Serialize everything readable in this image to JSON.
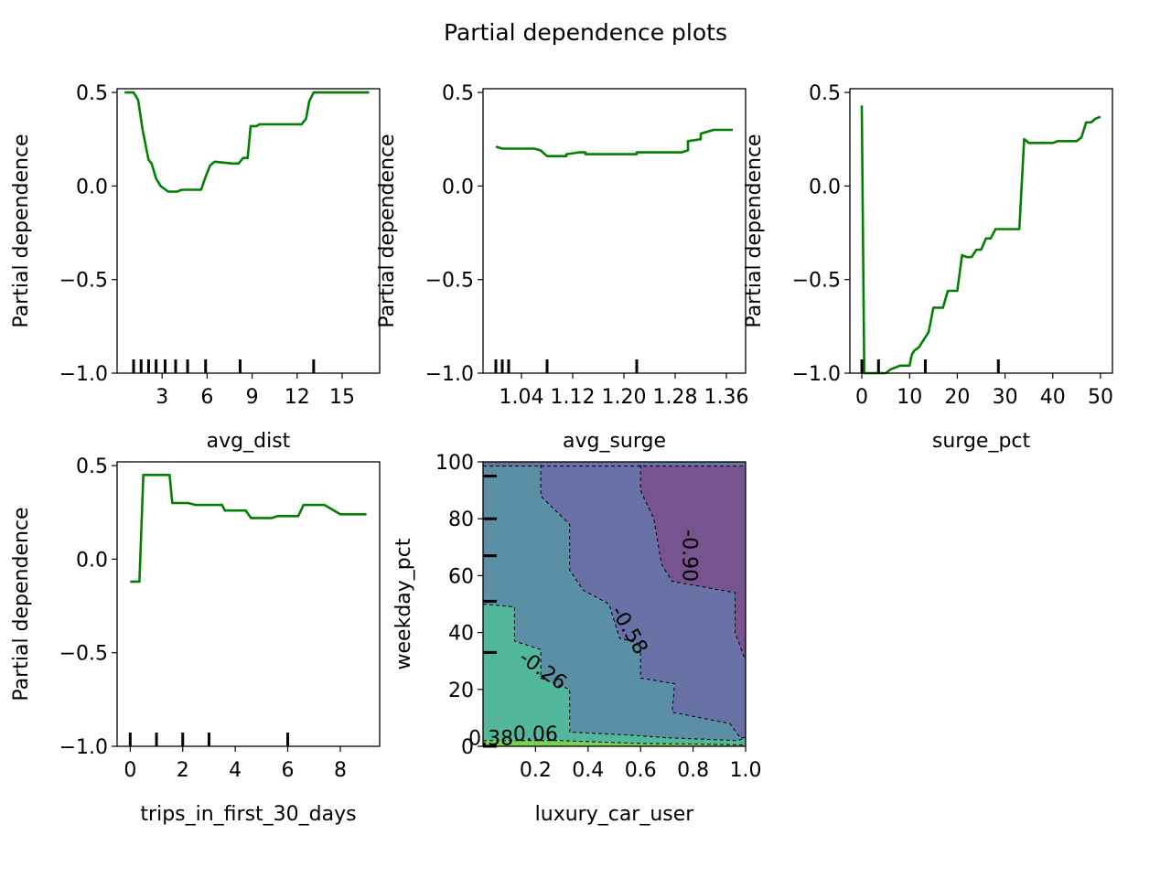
{
  "title": "Partial dependence plots",
  "colors": {
    "line": "#008000",
    "contour_fill": [
      "#78d153",
      "#52b79b",
      "#5b8fa5",
      "#6972a6",
      "#775490"
    ],
    "contour_line": "#000000"
  },
  "chart_data": [
    {
      "id": "avg_dist",
      "type": "line",
      "xlabel": "avg_dist",
      "ylabel": "Partial dependence",
      "xlim": [
        0,
        17.5
      ],
      "ylim": [
        -1.0,
        0.52
      ],
      "xticks": [
        3,
        6,
        9,
        12,
        15
      ],
      "xtick_labels": [
        "3",
        "6",
        "9",
        "12",
        "15"
      ],
      "yticks": [
        0.5,
        0.0,
        -0.5,
        -1.0
      ],
      "ytick_labels": [
        "0.5",
        "0.0",
        "−0.5",
        "−1.0"
      ],
      "deciles": [
        1.1,
        1.6,
        2.1,
        2.6,
        3.2,
        3.9,
        4.7,
        5.9,
        8.2,
        13.1
      ],
      "x": [
        0.5,
        1.1,
        1.4,
        1.7,
        2.1,
        2.3,
        2.6,
        2.9,
        3.4,
        4.0,
        4.3,
        4.6,
        5.6,
        5.9,
        6.2,
        6.5,
        7.7,
        8.1,
        8.4,
        8.7,
        8.9,
        9.3,
        9.5,
        9.8,
        11.8,
        12.0,
        12.3,
        12.6,
        12.8,
        13.1,
        14.2,
        16.8
      ],
      "y": [
        0.5,
        0.5,
        0.46,
        0.3,
        0.14,
        0.12,
        0.04,
        0.0,
        -0.03,
        -0.03,
        -0.02,
        -0.02,
        -0.02,
        0.05,
        0.11,
        0.13,
        0.12,
        0.12,
        0.15,
        0.15,
        0.32,
        0.32,
        0.33,
        0.33,
        0.33,
        0.33,
        0.33,
        0.36,
        0.45,
        0.5,
        0.5,
        0.5
      ]
    },
    {
      "id": "avg_surge",
      "type": "line",
      "xlabel": "avg_surge",
      "ylabel": "Partial dependence",
      "xlim": [
        0.98,
        1.39
      ],
      "ylim": [
        -1.0,
        0.52
      ],
      "xticks": [
        1.04,
        1.12,
        1.2,
        1.28,
        1.36
      ],
      "xtick_labels": [
        "1.04",
        "1.12",
        "1.20",
        "1.28",
        "1.36"
      ],
      "yticks": [
        0.5,
        0.0,
        -0.5,
        -1.0
      ],
      "ytick_labels": [
        "0.5",
        "0.0",
        "−0.5",
        "−1.0"
      ],
      "deciles": [
        1.0,
        1.01,
        1.02,
        1.08,
        1.22
      ],
      "x": [
        1.0,
        1.01,
        1.05,
        1.06,
        1.06,
        1.07,
        1.07,
        1.08,
        1.1,
        1.11,
        1.11,
        1.13,
        1.14,
        1.14,
        1.18,
        1.22,
        1.22,
        1.25,
        1.29,
        1.3,
        1.3,
        1.32,
        1.32,
        1.34,
        1.37
      ],
      "y": [
        0.21,
        0.2,
        0.2,
        0.2,
        0.2,
        0.19,
        0.19,
        0.16,
        0.16,
        0.16,
        0.17,
        0.18,
        0.18,
        0.17,
        0.17,
        0.17,
        0.18,
        0.18,
        0.18,
        0.19,
        0.24,
        0.25,
        0.28,
        0.3,
        0.3
      ]
    },
    {
      "id": "surge_pct",
      "type": "line",
      "xlabel": "surge_pct",
      "ylabel": "Partial dependence",
      "xlim": [
        -2.5,
        52.5
      ],
      "ylim": [
        -1.0,
        0.52
      ],
      "xticks": [
        0,
        10,
        20,
        30,
        40,
        50
      ],
      "xtick_labels": [
        "0",
        "10",
        "20",
        "30",
        "40",
        "50"
      ],
      "yticks": [
        0.5,
        0.0,
        -0.5,
        -1.0
      ],
      "ytick_labels": [
        "0.5",
        "0.0",
        "−0.5",
        "−1.0"
      ],
      "deciles": [
        0,
        3.5,
        13.3,
        28.6
      ],
      "x": [
        0.0,
        0.5,
        1.0,
        2.0,
        3.0,
        4.0,
        5.0,
        6.0,
        7.0,
        8.0,
        9.0,
        10.0,
        10.5,
        11.0,
        12.0,
        13.0,
        14.0,
        15.0,
        16.0,
        17.0,
        18.0,
        19.0,
        20.0,
        21.0,
        22.0,
        23.0,
        24.0,
        25.0,
        26.0,
        27.0,
        28.0,
        29.0,
        30.0,
        31.0,
        32.0,
        33.0,
        34.0,
        35.0,
        36.0,
        37.0,
        40.0,
        41.0,
        45.0,
        46.0,
        47.0,
        48.0,
        49.0,
        50.0
      ],
      "y": [
        0.43,
        -1.0,
        -1.0,
        -1.0,
        -1.0,
        -1.0,
        -1.0,
        -0.98,
        -0.97,
        -0.96,
        -0.96,
        -0.96,
        -0.9,
        -0.88,
        -0.86,
        -0.82,
        -0.78,
        -0.65,
        -0.65,
        -0.65,
        -0.56,
        -0.56,
        -0.56,
        -0.37,
        -0.38,
        -0.38,
        -0.34,
        -0.34,
        -0.28,
        -0.28,
        -0.23,
        -0.23,
        -0.23,
        -0.23,
        -0.23,
        -0.23,
        0.25,
        0.23,
        0.23,
        0.23,
        0.23,
        0.24,
        0.24,
        0.26,
        0.34,
        0.34,
        0.36,
        0.37
      ]
    },
    {
      "id": "trips_in_first_30_days",
      "type": "line",
      "xlabel": "trips_in_first_30_days",
      "ylabel": "Partial dependence",
      "xlim": [
        -0.5,
        9.5
      ],
      "ylim": [
        -1.0,
        0.52
      ],
      "xticks": [
        0,
        2,
        4,
        6,
        8
      ],
      "xtick_labels": [
        "0",
        "2",
        "4",
        "6",
        "8"
      ],
      "yticks": [
        0.5,
        0.0,
        -0.5,
        -1.0
      ],
      "ytick_labels": [
        "0.5",
        "0.0",
        "−0.5",
        "−1.0"
      ],
      "deciles": [
        0,
        1,
        2,
        3,
        6
      ],
      "x": [
        0.0,
        0.35,
        0.5,
        1.0,
        1.5,
        1.6,
        2.0,
        2.2,
        2.5,
        3.0,
        3.5,
        3.6,
        4.0,
        4.4,
        4.6,
        5.0,
        5.4,
        5.6,
        6.0,
        6.4,
        6.6,
        7.0,
        7.4,
        8.0,
        8.6,
        9.0
      ],
      "y": [
        -0.12,
        -0.12,
        0.45,
        0.45,
        0.45,
        0.3,
        0.3,
        0.3,
        0.29,
        0.29,
        0.29,
        0.26,
        0.26,
        0.26,
        0.22,
        0.22,
        0.22,
        0.23,
        0.23,
        0.23,
        0.29,
        0.29,
        0.29,
        0.24,
        0.24,
        0.24
      ]
    },
    {
      "id": "luxury_car_user_weekday_pct",
      "type": "contour",
      "xlabel": "luxury_car_user",
      "ylabel": "weekday_pct",
      "xlim": [
        0.0,
        1.0
      ],
      "ylim": [
        0,
        100
      ],
      "xticks": [
        0.2,
        0.4,
        0.6,
        0.8,
        1.0
      ],
      "xtick_labels": [
        "0.2",
        "0.4",
        "0.6",
        "0.8",
        "1.0"
      ],
      "yticks": [
        0,
        20,
        40,
        60,
        80,
        100
      ],
      "ytick_labels": [
        "0",
        "20",
        "40",
        "60",
        "80",
        "100"
      ],
      "ydeciles": [
        0,
        33,
        51,
        67,
        80,
        95
      ],
      "levels": [
        0.38,
        0.06,
        -0.26,
        -0.58,
        -0.9
      ],
      "contour_labels": [
        {
          "text": "-0.90",
          "x": 0.79,
          "y": 67,
          "angle": 90
        },
        {
          "text": "-0.58",
          "x": 0.56,
          "y": 41,
          "angle": 60
        },
        {
          "text": "-0.26",
          "x": 0.23,
          "y": 27,
          "angle": 35
        },
        {
          "text": "0.06",
          "x": 0.2,
          "y": 4.5,
          "angle": 0
        },
        {
          "text": "0.38",
          "x": 0.03,
          "y": 3,
          "angle": 0
        }
      ]
    }
  ]
}
